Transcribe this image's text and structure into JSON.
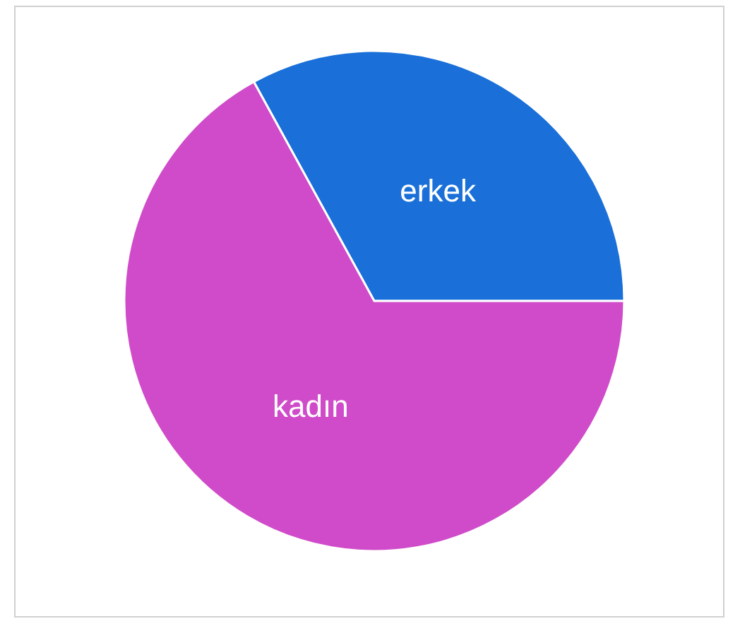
{
  "chart_data": {
    "type": "pie",
    "categories": [
      "erkek",
      "kadın"
    ],
    "values": [
      33,
      67
    ],
    "colors": [
      "#1a70d8",
      "#d04bc9"
    ],
    "legend": false
  }
}
